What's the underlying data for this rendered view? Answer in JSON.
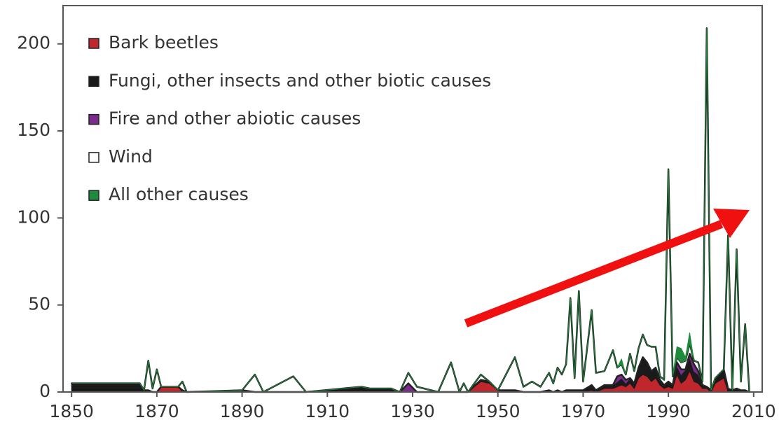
{
  "chart_data": {
    "type": "stacked_area",
    "x": [
      1850,
      1855,
      1860,
      1866,
      1867,
      1868,
      1869,
      1870,
      1871,
      1875,
      1876,
      1877,
      1890,
      1893,
      1895,
      1902,
      1905,
      1918,
      1920,
      1925,
      1927,
      1929,
      1931,
      1936,
      1939,
      1941,
      1942,
      1943,
      1946,
      1948,
      1950,
      1954,
      1956,
      1958,
      1960,
      1962,
      1963,
      1964,
      1965,
      1966,
      1967,
      1968,
      1969,
      1970,
      1972,
      1973,
      1975,
      1977,
      1978,
      1979,
      1980,
      1981,
      1982,
      1983,
      1984,
      1985,
      1986,
      1987,
      1988,
      1989,
      1990,
      1991,
      1992,
      1993,
      1994,
      1995,
      1996,
      1997,
      1998,
      1999,
      2000,
      2001,
      2003,
      2004,
      2005,
      2006,
      2007,
      2008,
      2009
    ],
    "series": [
      {
        "name": "Bark beetles",
        "color": "#c0272d",
        "values": [
          0,
          0,
          0,
          0,
          0,
          0,
          0,
          0,
          3,
          3,
          0,
          0,
          0,
          0,
          0,
          0,
          0,
          0,
          0,
          0,
          0,
          0,
          0,
          0,
          0,
          0,
          0,
          0,
          6,
          5,
          1,
          0,
          0,
          0,
          0,
          0,
          0,
          0,
          0,
          0,
          0,
          0,
          0,
          0,
          1,
          0,
          2,
          2,
          3,
          4,
          3,
          5,
          2,
          8,
          10,
          9,
          6,
          8,
          4,
          2,
          3,
          2,
          10,
          5,
          7,
          12,
          6,
          5,
          2,
          2,
          0,
          5,
          8,
          0,
          0,
          0,
          0,
          0,
          0
        ]
      },
      {
        "name": "Fungi, other insects and other biotic causes",
        "color": "#1a1a1a",
        "values": [
          5,
          5,
          5,
          5,
          1,
          1,
          0,
          0,
          0,
          0,
          1,
          0,
          1,
          0,
          0,
          0,
          0,
          3,
          2,
          2,
          0,
          0,
          0,
          0,
          0,
          0,
          0,
          0,
          1,
          1,
          0,
          1,
          0,
          0,
          0,
          1,
          0,
          1,
          0,
          1,
          1,
          1,
          1,
          1,
          3,
          1,
          2,
          2,
          3,
          4,
          2,
          3,
          3,
          6,
          10,
          8,
          6,
          6,
          3,
          2,
          3,
          2,
          5,
          5,
          6,
          8,
          6,
          5,
          2,
          1,
          1,
          3,
          5,
          2,
          1,
          2,
          1,
          1,
          0
        ]
      },
      {
        "name": "Fire and other abiotic causes",
        "color": "#7b2a8e",
        "values": [
          0,
          0,
          0,
          0,
          0,
          0,
          0,
          0,
          0,
          0,
          0,
          0,
          0,
          0,
          0,
          0,
          0,
          0,
          0,
          0,
          0,
          5,
          0,
          0,
          0,
          0,
          0,
          0,
          0,
          0,
          0,
          0,
          0,
          0,
          0,
          0,
          0,
          0,
          0,
          0,
          0,
          0,
          0,
          0,
          0,
          0,
          0,
          0,
          3,
          2,
          2,
          0,
          0,
          0,
          0,
          0,
          0,
          0,
          0,
          0,
          0,
          0,
          2,
          3,
          0,
          2,
          4,
          2,
          0,
          0,
          0,
          0,
          0,
          0,
          0,
          0,
          0,
          0,
          0
        ]
      },
      {
        "name": "Wind",
        "color": "#ffffff",
        "values": [
          0,
          0,
          0,
          0,
          0,
          17,
          2,
          13,
          0,
          0,
          5,
          0,
          0,
          10,
          0,
          9,
          0,
          0,
          0,
          0,
          0,
          6,
          3,
          0,
          17,
          0,
          5,
          0,
          3,
          0,
          0,
          19,
          3,
          6,
          3,
          10,
          5,
          13,
          10,
          15,
          53,
          7,
          57,
          5,
          43,
          10,
          8,
          20,
          5,
          6,
          3,
          14,
          7,
          11,
          13,
          10,
          14,
          12,
          2,
          3,
          122,
          5,
          3,
          4,
          5,
          6,
          2,
          5,
          2,
          206,
          0,
          0,
          0,
          88,
          0,
          80,
          5,
          38,
          0
        ]
      },
      {
        "name": "All other causes",
        "color": "#1e8a3c",
        "values": [
          0,
          0,
          0,
          0,
          0,
          0,
          0,
          0,
          0,
          0,
          0,
          0,
          0,
          0,
          0,
          0,
          0,
          0,
          0,
          0,
          0,
          0,
          0,
          0,
          0,
          0,
          0,
          0,
          0,
          0,
          0,
          0,
          0,
          0,
          0,
          0,
          0,
          0,
          0,
          0,
          0,
          0,
          0,
          0,
          0,
          0,
          0,
          0,
          0,
          3,
          0,
          0,
          0,
          0,
          0,
          0,
          0,
          0,
          0,
          0,
          0,
          0,
          6,
          8,
          2,
          6,
          0,
          0,
          0,
          0,
          0,
          0,
          0,
          0,
          0,
          0,
          0,
          0,
          0
        ]
      }
    ],
    "xlim": [
      1848,
      2012
    ],
    "xticks": [
      1850,
      1870,
      1890,
      1910,
      1930,
      1950,
      1970,
      1990,
      2010
    ],
    "ylim": [
      0,
      222
    ],
    "yticks": [
      0,
      50,
      100,
      150,
      200
    ]
  }
}
